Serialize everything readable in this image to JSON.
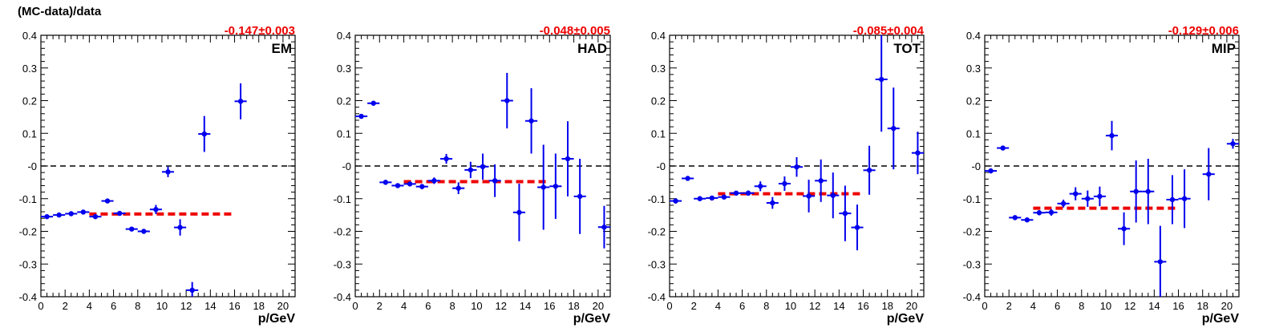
{
  "figure": {
    "ylabel": "(MC-data)/data"
  },
  "colors": {
    "points": "#0000ee",
    "fit": "#ee0000",
    "zero": "#000000",
    "axis": "#000000"
  },
  "chart_data": [
    {
      "type": "scatter",
      "title": "EM",
      "fit_label": "-0.147±0.003",
      "fit_value": -0.147,
      "fit_range": [
        4,
        16
      ],
      "xlabel": "p/GeV",
      "ylabel": "(MC-data)/data",
      "xlim": [
        0,
        21
      ],
      "ylim": [
        -0.4,
        0.4
      ],
      "xticks": [
        0,
        2,
        4,
        6,
        8,
        10,
        12,
        14,
        16,
        18,
        20
      ],
      "yticks": [
        -0.4,
        -0.3,
        -0.2,
        -0.1,
        0,
        0.1,
        0.2,
        0.3,
        0.4
      ],
      "ytick_labels": [
        "-0.4",
        "-0.3",
        "-0.2",
        "-0.1",
        "-0",
        "0.1",
        "0.2",
        "0.3",
        "0.4"
      ],
      "points": [
        {
          "x": 0.5,
          "y": -0.155,
          "err": 0.004
        },
        {
          "x": 1.5,
          "y": -0.15,
          "err": 0.004
        },
        {
          "x": 2.5,
          "y": -0.146,
          "err": 0.004
        },
        {
          "x": 3.5,
          "y": -0.141,
          "err": 0.004
        },
        {
          "x": 4.5,
          "y": -0.155,
          "err": 0.005
        },
        {
          "x": 5.5,
          "y": -0.107,
          "err": 0.005
        },
        {
          "x": 6.5,
          "y": -0.145,
          "err": 0.005
        },
        {
          "x": 7.5,
          "y": -0.193,
          "err": 0.006
        },
        {
          "x": 8.5,
          "y": -0.2,
          "err": 0.007
        },
        {
          "x": 9.5,
          "y": -0.133,
          "err": 0.014
        },
        {
          "x": 10.5,
          "y": -0.018,
          "err": 0.016
        },
        {
          "x": 11.5,
          "y": -0.188,
          "err": 0.025
        },
        {
          "x": 12.5,
          "y": -0.38,
          "err": 0.025
        },
        {
          "x": 13.5,
          "y": 0.098,
          "err": 0.055
        },
        {
          "x": 16.5,
          "y": 0.198,
          "err": 0.055
        }
      ]
    },
    {
      "type": "scatter",
      "title": "HAD",
      "fit_label": "-0.048±0.005",
      "fit_value": -0.048,
      "fit_range": [
        4,
        16
      ],
      "xlabel": "p/GeV",
      "ylabel": "",
      "xlim": [
        0,
        21
      ],
      "ylim": [
        -0.4,
        0.4
      ],
      "xticks": [
        0,
        2,
        4,
        6,
        8,
        10,
        12,
        14,
        16,
        18,
        20
      ],
      "yticks": [
        -0.4,
        -0.3,
        -0.2,
        -0.1,
        0,
        0.1,
        0.2,
        0.3,
        0.4
      ],
      "ytick_labels": [
        "-0.4",
        "-0.3",
        "-0.2",
        "-0.1",
        "-0",
        "0.1",
        "0.2",
        "0.3",
        "0.4"
      ],
      "points": [
        {
          "x": 0.5,
          "y": 0.152,
          "err": 0.005
        },
        {
          "x": 1.5,
          "y": 0.192,
          "err": 0.005
        },
        {
          "x": 2.5,
          "y": -0.05,
          "err": 0.005
        },
        {
          "x": 3.5,
          "y": -0.06,
          "err": 0.006
        },
        {
          "x": 4.5,
          "y": -0.055,
          "err": 0.006
        },
        {
          "x": 5.5,
          "y": -0.063,
          "err": 0.008
        },
        {
          "x": 6.5,
          "y": -0.045,
          "err": 0.01
        },
        {
          "x": 7.5,
          "y": 0.022,
          "err": 0.015
        },
        {
          "x": 8.5,
          "y": -0.068,
          "err": 0.018
        },
        {
          "x": 9.5,
          "y": -0.012,
          "err": 0.025
        },
        {
          "x": 10.5,
          "y": -0.002,
          "err": 0.04
        },
        {
          "x": 11.5,
          "y": -0.045,
          "err": 0.05
        },
        {
          "x": 12.5,
          "y": 0.2,
          "err": 0.085
        },
        {
          "x": 13.5,
          "y": -0.142,
          "err": 0.088
        },
        {
          "x": 14.5,
          "y": 0.138,
          "err": 0.1
        },
        {
          "x": 15.5,
          "y": -0.065,
          "err": 0.13
        },
        {
          "x": 16.5,
          "y": -0.062,
          "err": 0.1
        },
        {
          "x": 17.5,
          "y": 0.022,
          "err": 0.115
        },
        {
          "x": 18.5,
          "y": -0.093,
          "err": 0.115
        },
        {
          "x": 20.5,
          "y": -0.187,
          "err": 0.065
        }
      ]
    },
    {
      "type": "scatter",
      "title": "TOT",
      "fit_label": "-0.085±0.004",
      "fit_value": -0.085,
      "fit_range": [
        4,
        16
      ],
      "xlabel": "p/GeV",
      "ylabel": "",
      "xlim": [
        0,
        21
      ],
      "ylim": [
        -0.4,
        0.4
      ],
      "xticks": [
        0,
        2,
        4,
        6,
        8,
        10,
        12,
        14,
        16,
        18,
        20
      ],
      "yticks": [
        -0.4,
        -0.3,
        -0.2,
        -0.1,
        0,
        0.1,
        0.2,
        0.3,
        0.4
      ],
      "ytick_labels": [
        "-0.4",
        "-0.3",
        "-0.2",
        "-0.1",
        "-0",
        "0.1",
        "0.2",
        "0.3",
        "0.4"
      ],
      "points": [
        {
          "x": 0.5,
          "y": -0.107,
          "err": 0.008
        },
        {
          "x": 1.5,
          "y": -0.038,
          "err": 0.005
        },
        {
          "x": 2.5,
          "y": -0.1,
          "err": 0.005
        },
        {
          "x": 3.5,
          "y": -0.098,
          "err": 0.005
        },
        {
          "x": 4.5,
          "y": -0.095,
          "err": 0.005
        },
        {
          "x": 5.5,
          "y": -0.083,
          "err": 0.006
        },
        {
          "x": 6.5,
          "y": -0.083,
          "err": 0.008
        },
        {
          "x": 7.5,
          "y": -0.062,
          "err": 0.015
        },
        {
          "x": 8.5,
          "y": -0.113,
          "err": 0.018
        },
        {
          "x": 9.5,
          "y": -0.054,
          "err": 0.022
        },
        {
          "x": 10.5,
          "y": -0.003,
          "err": 0.03
        },
        {
          "x": 11.5,
          "y": -0.092,
          "err": 0.05
        },
        {
          "x": 12.5,
          "y": -0.045,
          "err": 0.065
        },
        {
          "x": 13.5,
          "y": -0.09,
          "err": 0.07
        },
        {
          "x": 14.5,
          "y": -0.145,
          "err": 0.085
        },
        {
          "x": 15.5,
          "y": -0.188,
          "err": 0.07
        },
        {
          "x": 16.5,
          "y": -0.013,
          "err": 0.075
        },
        {
          "x": 17.5,
          "y": 0.265,
          "err": 0.16
        },
        {
          "x": 18.5,
          "y": 0.115,
          "err": 0.125
        },
        {
          "x": 20.5,
          "y": 0.04,
          "err": 0.065
        }
      ]
    },
    {
      "type": "scatter",
      "title": "MIP",
      "fit_label": "-0.129±0.006",
      "fit_value": -0.129,
      "fit_range": [
        4,
        16
      ],
      "xlabel": "p/GeV",
      "ylabel": "",
      "xlim": [
        0,
        21
      ],
      "ylim": [
        -0.4,
        0.4
      ],
      "xticks": [
        0,
        2,
        4,
        6,
        8,
        10,
        12,
        14,
        16,
        18,
        20
      ],
      "yticks": [
        -0.4,
        -0.3,
        -0.2,
        -0.1,
        0,
        0.1,
        0.2,
        0.3,
        0.4
      ],
      "ytick_labels": [
        "-0.4",
        "-0.3",
        "-0.2",
        "-0.1",
        "-0",
        "0.1",
        "0.2",
        "0.3",
        "0.4"
      ],
      "points": [
        {
          "x": 0.5,
          "y": -0.015,
          "err": 0.005
        },
        {
          "x": 1.5,
          "y": 0.055,
          "err": 0.005
        },
        {
          "x": 2.5,
          "y": -0.158,
          "err": 0.006
        },
        {
          "x": 3.5,
          "y": -0.165,
          "err": 0.006
        },
        {
          "x": 4.5,
          "y": -0.143,
          "err": 0.008
        },
        {
          "x": 5.5,
          "y": -0.142,
          "err": 0.01
        },
        {
          "x": 6.5,
          "y": -0.115,
          "err": 0.012
        },
        {
          "x": 7.5,
          "y": -0.085,
          "err": 0.02
        },
        {
          "x": 8.5,
          "y": -0.1,
          "err": 0.025
        },
        {
          "x": 9.5,
          "y": -0.093,
          "err": 0.03
        },
        {
          "x": 10.5,
          "y": 0.093,
          "err": 0.045
        },
        {
          "x": 11.5,
          "y": -0.192,
          "err": 0.05
        },
        {
          "x": 12.5,
          "y": -0.078,
          "err": 0.095
        },
        {
          "x": 13.5,
          "y": -0.078,
          "err": 0.1
        },
        {
          "x": 14.5,
          "y": -0.293,
          "err": 0.11
        },
        {
          "x": 15.5,
          "y": -0.103,
          "err": 0.075
        },
        {
          "x": 16.5,
          "y": -0.1,
          "err": 0.09
        },
        {
          "x": 18.5,
          "y": -0.025,
          "err": 0.08
        },
        {
          "x": 20.5,
          "y": 0.068,
          "err": 0.015
        }
      ]
    }
  ]
}
